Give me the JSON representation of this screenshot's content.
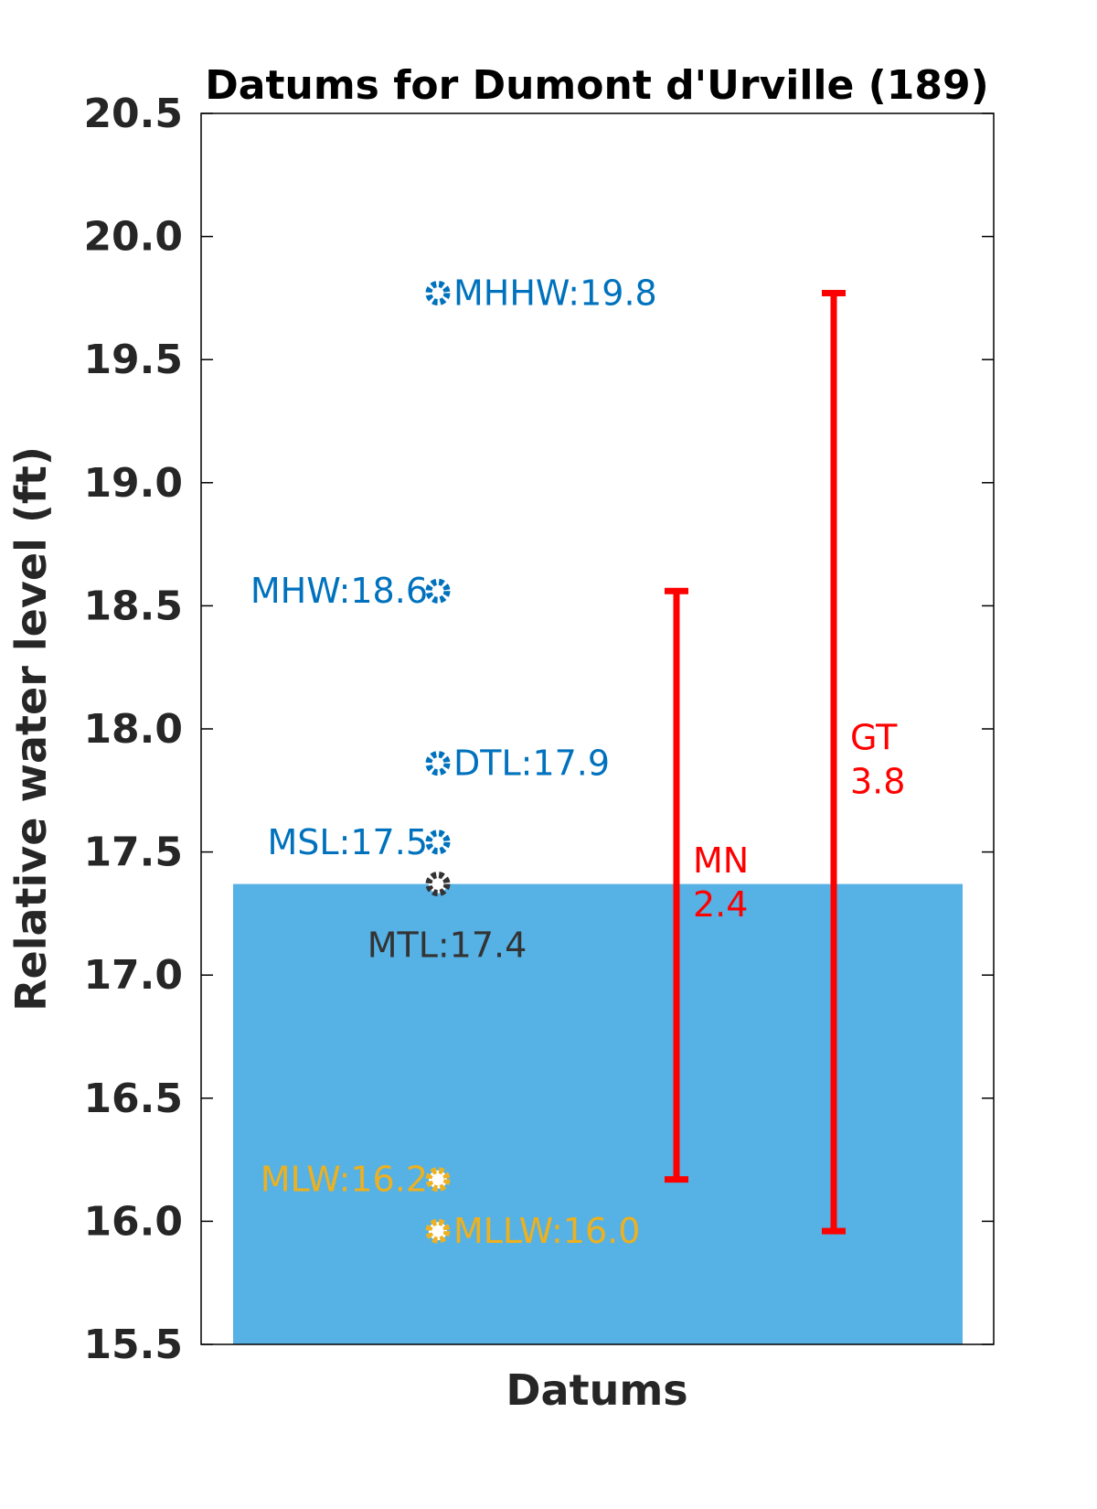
{
  "chart_data": {
    "type": "scatter",
    "title": "Datums for Dumont d'Urville (189)",
    "xlabel": "Datums",
    "ylabel": "Relative water level (ft)",
    "ylim": [
      15.5,
      20.5
    ],
    "yticks": [
      "15.5",
      "16.0",
      "16.5",
      "17.0",
      "17.5",
      "18.0",
      "18.5",
      "19.0",
      "19.5",
      "20.0",
      "20.5"
    ],
    "water_level": 17.37,
    "colors": {
      "water": "#56b1e5",
      "high": "#0072bd",
      "mean": "#333333",
      "low": "#edb120",
      "range": "#ff0000"
    },
    "datums": [
      {
        "name": "MHHW",
        "value": 19.77,
        "label": "MHHW:19.8",
        "group": "high",
        "label_side": "right"
      },
      {
        "name": "MHW",
        "value": 18.56,
        "label": "MHW:18.6",
        "group": "high",
        "label_side": "left"
      },
      {
        "name": "DTL",
        "value": 17.86,
        "label": "DTL:17.9",
        "group": "high",
        "label_side": "right"
      },
      {
        "name": "MSL",
        "value": 17.54,
        "label": "MSL:17.5",
        "group": "high",
        "label_side": "left"
      },
      {
        "name": "MTL",
        "value": 17.37,
        "label": "MTL:17.4",
        "group": "mean",
        "label_side": "below"
      },
      {
        "name": "MLW",
        "value": 16.17,
        "label": "MLW:16.2",
        "group": "low",
        "label_side": "left"
      },
      {
        "name": "MLLW",
        "value": 15.96,
        "label": "MLLW:16.0",
        "group": "low",
        "label_side": "right"
      }
    ],
    "ranges": [
      {
        "name": "MN",
        "low": 16.17,
        "high": 18.56,
        "value": "2.4"
      },
      {
        "name": "GT",
        "low": 15.96,
        "high": 19.77,
        "value": "3.8"
      }
    ]
  }
}
